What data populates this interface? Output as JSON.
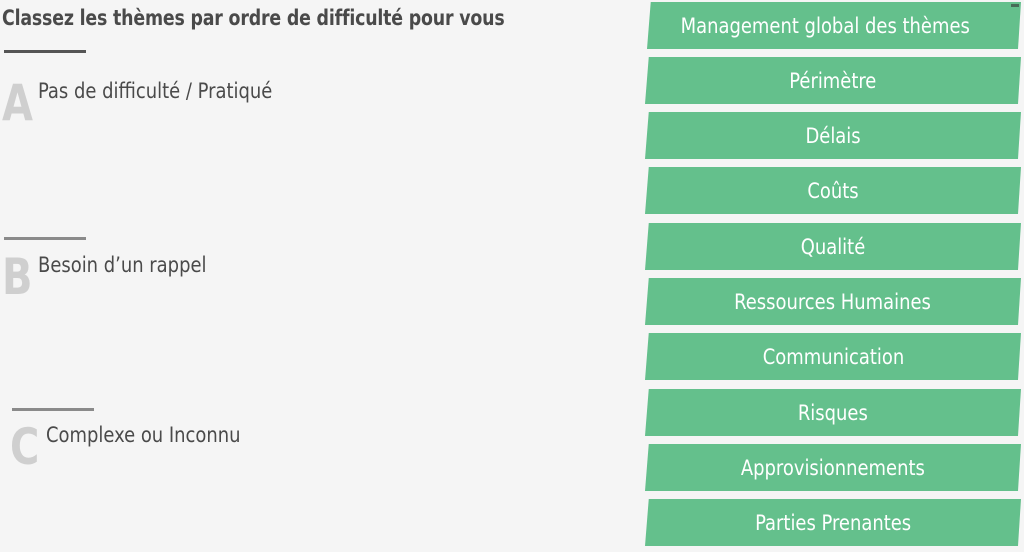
{
  "title": "Classez les thèmes par ordre de difficulté pour vous",
  "categories": [
    {
      "letter": "A",
      "label": "Pas de difficulté / Pratiqué"
    },
    {
      "letter": "B",
      "label": "Besoin d’un rappel"
    },
    {
      "letter": "C",
      "label": "Complexe ou Inconnu"
    }
  ],
  "themes": [
    "Management global des thèmes",
    "Périmètre",
    "Délais",
    "Coûts",
    "Qualité",
    "Ressources Humaines",
    "Communication",
    "Risques",
    "Approvisionnements",
    "Parties Prenantes"
  ],
  "colors": {
    "card": "#64c08c",
    "card_text": "#ffffff",
    "text": "#4a4a4a",
    "letter": "#cfcfcf",
    "background": "#f5f5f5"
  }
}
